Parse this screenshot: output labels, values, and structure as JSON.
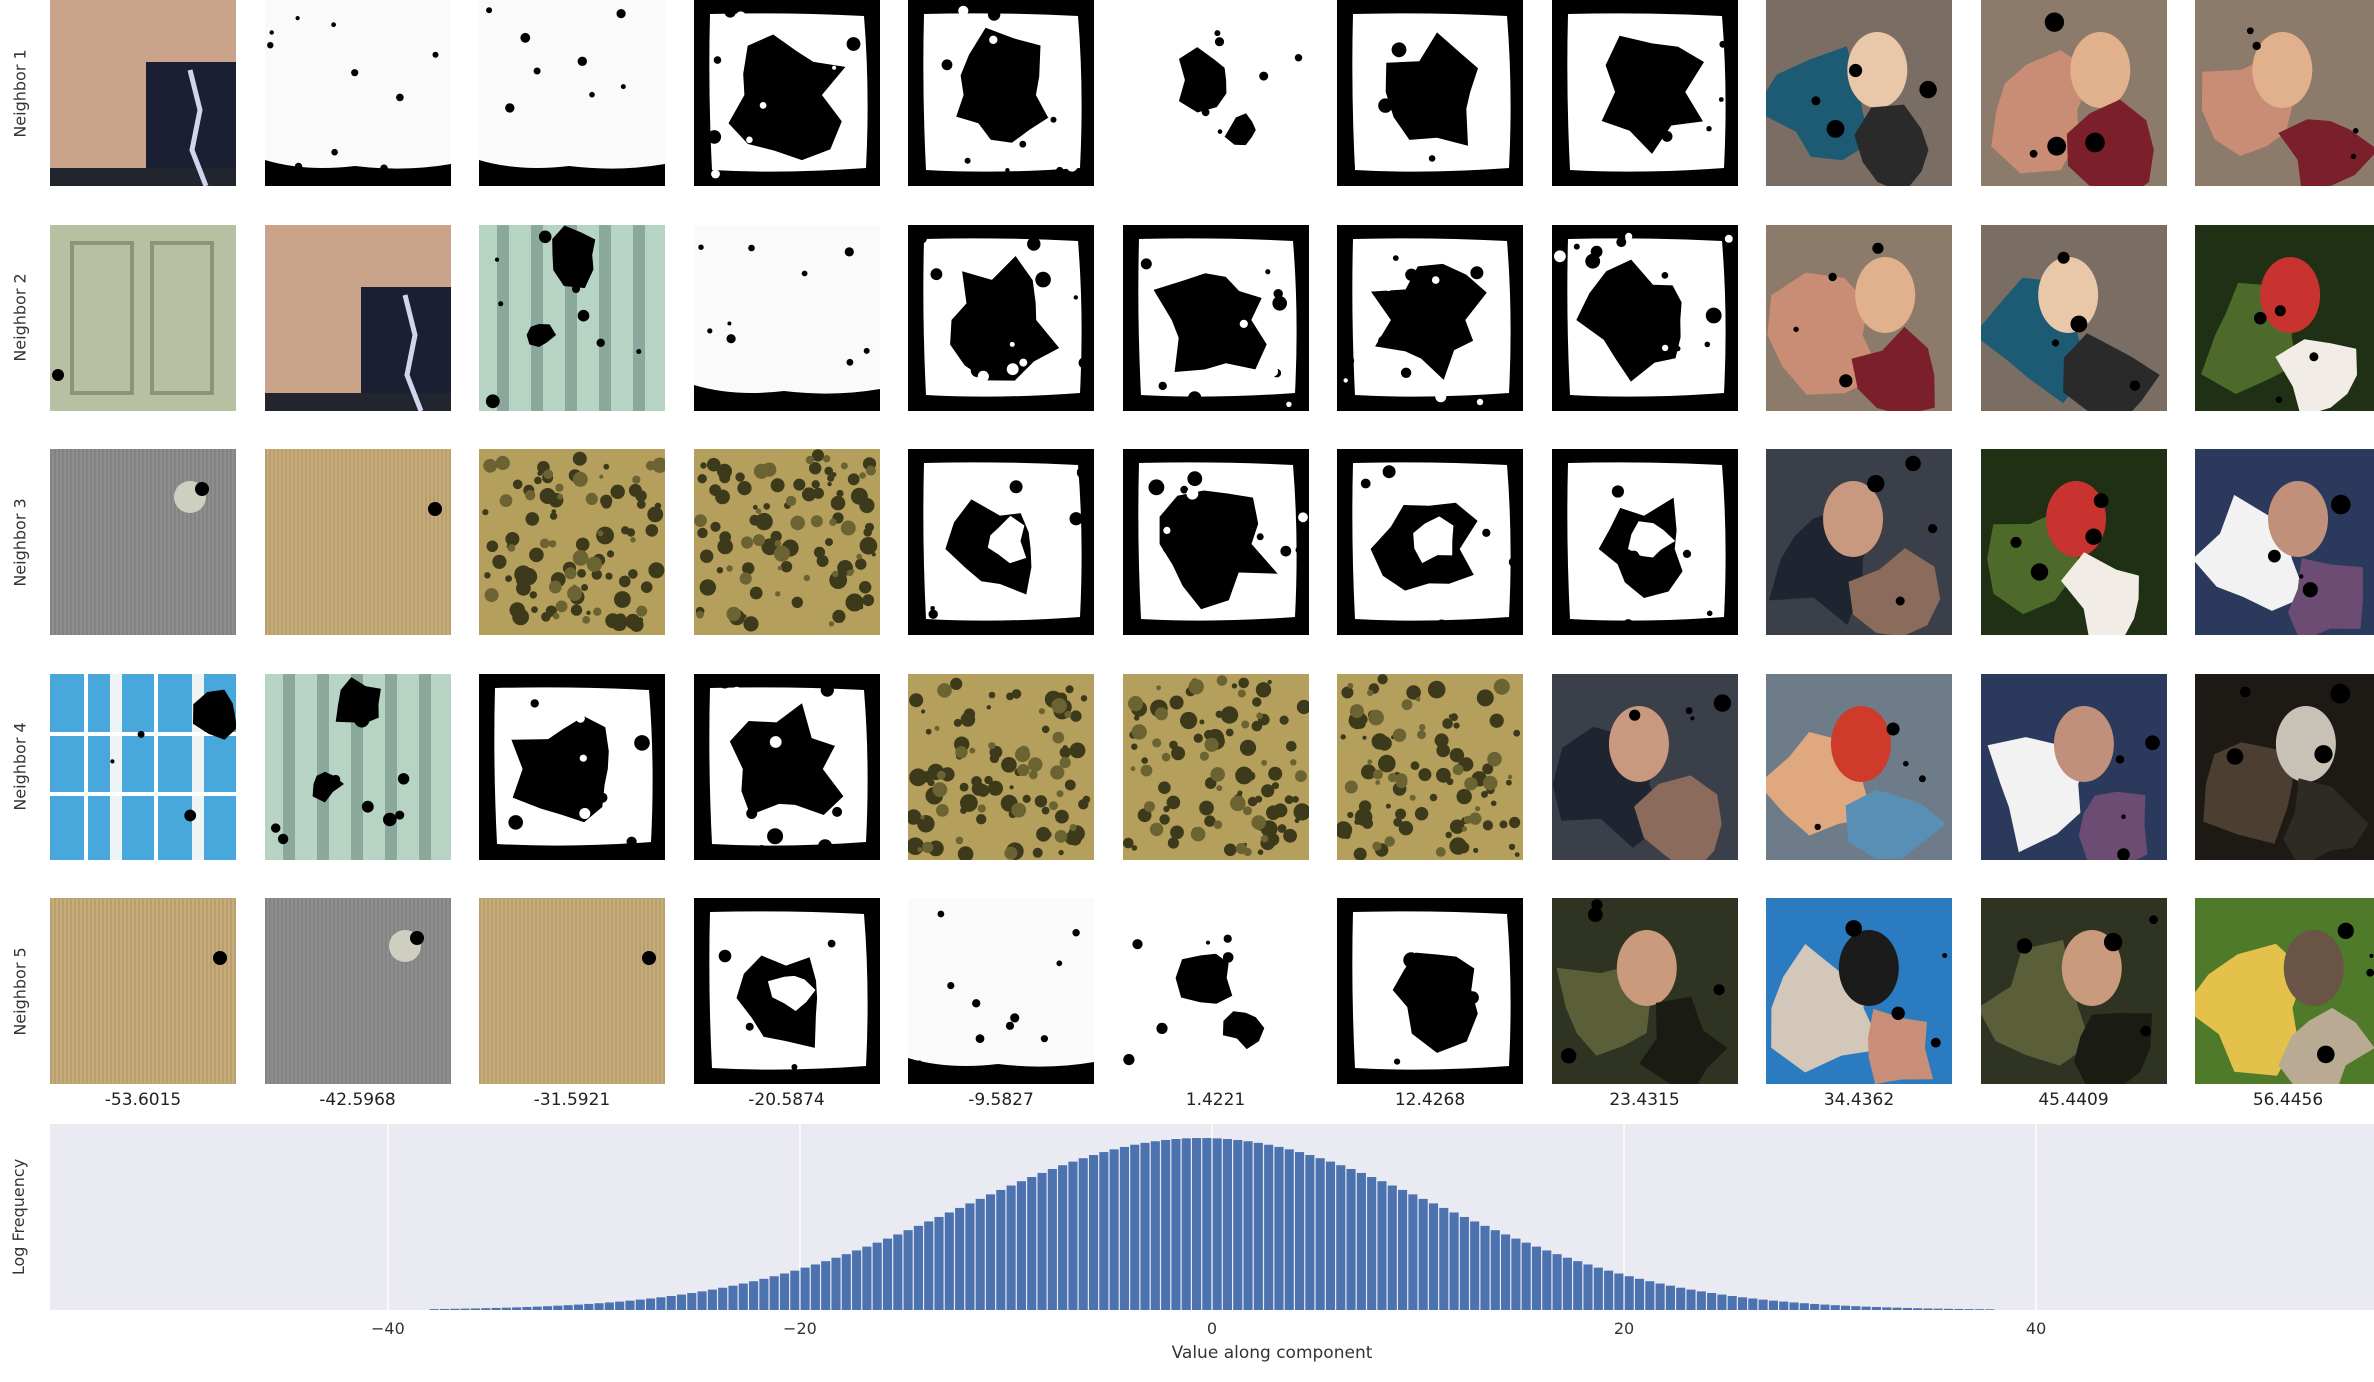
{
  "rows": [
    {
      "label": "Neighbor 1"
    },
    {
      "label": "Neighbor 2"
    },
    {
      "label": "Neighbor 3"
    },
    {
      "label": "Neighbor 4"
    },
    {
      "label": "Neighbor 5"
    }
  ],
  "columns": [
    {
      "value": "-53.6015"
    },
    {
      "value": "-42.5968"
    },
    {
      "value": "-31.5921"
    },
    {
      "value": "-20.5874"
    },
    {
      "value": "-9.5827"
    },
    {
      "value": "1.4221"
    },
    {
      "value": "12.4268"
    },
    {
      "value": "23.4315"
    },
    {
      "value": "34.4362"
    },
    {
      "value": "45.4409"
    },
    {
      "value": "56.4456"
    }
  ],
  "grid": [
    [
      "wall-poster",
      "white-mask",
      "white-mask",
      "mask-square-blob",
      "mask-square-blob",
      "mask-sparse-blob",
      "mask-heavy-blob",
      "mask-heavy-blob",
      "photo-women",
      "photo-baby",
      "photo-baby"
    ],
    [
      "cabinet",
      "wall-poster",
      "curtain",
      "white-mask",
      "mask-square-blob",
      "mask-square-blob",
      "mask-square-blob",
      "mask-square-blob",
      "photo-baby",
      "photo-women",
      "photo-park"
    ],
    [
      "gray-texture",
      "burlap",
      "camo-texture",
      "camo-texture",
      "mask-ring-blob",
      "mask-square-blob",
      "mask-ring-blob",
      "mask-ring-blob",
      "photo-men",
      "photo-park",
      "photo-group"
    ],
    [
      "window",
      "curtain",
      "mask-square-blob",
      "mask-square-blob",
      "camo-texture",
      "camo-texture",
      "camo-texture",
      "photo-men",
      "photo-boy",
      "photo-group",
      "photo-bike"
    ],
    [
      "burlap",
      "gray-texture",
      "burlap",
      "mask-ring-blob",
      "white-mask",
      "mask-sparse-blob",
      "mask-heavy-blob",
      "photo-soldier",
      "photo-woman-glasses",
      "photo-soldier",
      "photo-woman-hat"
    ]
  ],
  "chart_data": {
    "type": "bar",
    "title": "",
    "xlabel": "Value along component",
    "ylabel": "Log Frequency",
    "xlim": [
      -56.4,
      56.4
    ],
    "xticks": [
      -40,
      -20,
      20,
      40
    ],
    "zero_tick": 0,
    "bin_width": 0.5,
    "distribution": {
      "center": -0.5,
      "spread": 11.5,
      "support": [
        -38,
        38
      ],
      "peak": 1.0
    },
    "grid": true,
    "bar_color": "#4c72b0",
    "background_color": "#eaeaf2"
  }
}
